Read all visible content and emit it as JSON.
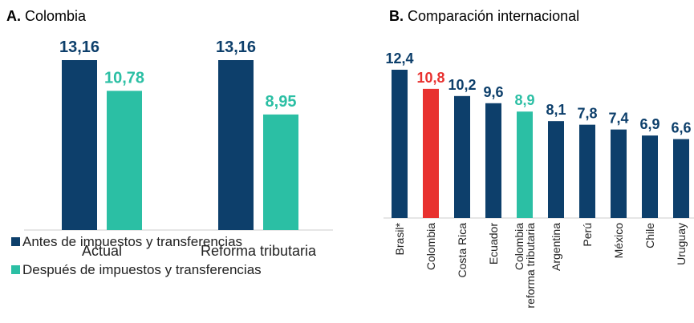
{
  "chart_data": [
    {
      "type": "bar",
      "label": "A.",
      "title": "Colombia",
      "categories": [
        "Actual",
        "Reforma tributaria"
      ],
      "series": [
        {
          "name": "Antes de impuestos y transferencias",
          "color": "#0d3f6b",
          "values": [
            13.16,
            13.16
          ],
          "value_labels": [
            "13,16",
            "13,16"
          ]
        },
        {
          "name": "Después de impuestos y transferencias",
          "color": "#2bbfa4",
          "values": [
            10.78,
            8.95
          ],
          "value_labels": [
            "10,78",
            "8,95"
          ]
        }
      ]
    },
    {
      "type": "bar",
      "label": "B.",
      "title": "Comparación internacional",
      "categories": [
        [
          "Brasil*"
        ],
        [
          "Colombia"
        ],
        [
          "Costa Rica"
        ],
        [
          "Ecuador"
        ],
        [
          "Colombia",
          "reforma tributaria"
        ],
        [
          "Argentina"
        ],
        [
          "Perú"
        ],
        [
          "México"
        ],
        [
          "Chile"
        ],
        [
          "Uruguay"
        ]
      ],
      "values": [
        12.4,
        10.8,
        10.2,
        9.6,
        8.9,
        8.1,
        7.8,
        7.4,
        6.9,
        6.6
      ],
      "value_labels": [
        "12,4",
        "10,8",
        "10,2",
        "9,6",
        "8,9",
        "8,1",
        "7,8",
        "7,4",
        "6,9",
        "6,6"
      ],
      "colors": [
        "#0d3f6b",
        "#e8312f",
        "#0d3f6b",
        "#0d3f6b",
        "#2bbfa4",
        "#0d3f6b",
        "#0d3f6b",
        "#0d3f6b",
        "#0d3f6b",
        "#0d3f6b"
      ]
    }
  ]
}
